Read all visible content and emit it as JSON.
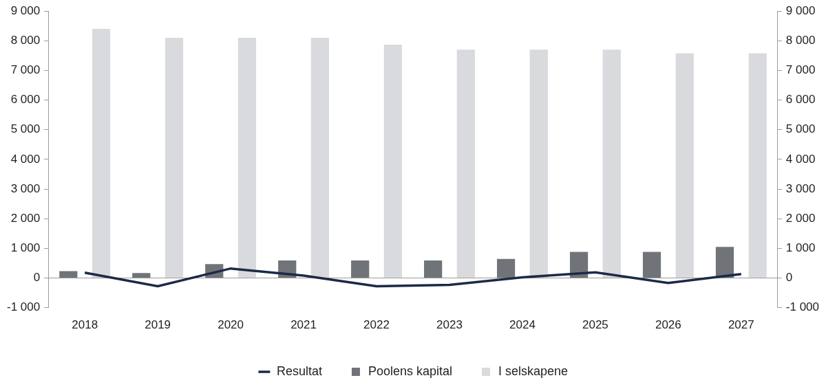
{
  "chart_data": {
    "type": "bar",
    "categories": [
      "2018",
      "2019",
      "2020",
      "2021",
      "2022",
      "2023",
      "2024",
      "2025",
      "2026",
      "2027"
    ],
    "series": [
      {
        "name": "Poolens kapital",
        "color": "#707479",
        "values": [
          230,
          170,
          470,
          590,
          590,
          590,
          640,
          880,
          880,
          1050
        ]
      },
      {
        "name": "I selskapene",
        "color": "#d9dadd",
        "values": [
          8400,
          8100,
          8100,
          8100,
          7870,
          7700,
          7700,
          7700,
          7580,
          7580
        ]
      },
      {
        "name": "Resultat",
        "color": "#1b2a47",
        "type": "line",
        "marker": "none",
        "line_style": "solid",
        "axis": "y2",
        "values": [
          180,
          -280,
          320,
          80,
          -280,
          -230,
          20,
          190,
          -170,
          130
        ]
      }
    ],
    "ylim": [
      -1000,
      9000
    ],
    "yticks": [
      {
        "value": -1000,
        "label": "-1 000"
      },
      0,
      {
        "value": 1000,
        "label": "1 000"
      },
      {
        "value": 2000,
        "label": "2 000"
      },
      {
        "value": 3000,
        "label": "3 000"
      },
      {
        "value": 4000,
        "label": "4 000"
      },
      {
        "value": 5000,
        "label": "5 000"
      },
      {
        "value": 6000,
        "label": "6 000"
      },
      {
        "value": 7000,
        "label": "7 000"
      },
      {
        "value": 8000,
        "label": "8 000"
      },
      {
        "value": 9000,
        "label": "9 000"
      }
    ],
    "y2lim": [
      -1000,
      9000
    ],
    "y2ticks": [
      {
        "value": -1000,
        "label": "-1 000"
      },
      0,
      {
        "value": 1000,
        "label": "1 000"
      },
      {
        "value": 2000,
        "label": "2 000"
      },
      {
        "value": 3000,
        "label": "3 000"
      },
      {
        "value": 4000,
        "label": "4 000"
      },
      {
        "value": 5000,
        "label": "5 000"
      },
      {
        "value": 6000,
        "label": "6 000"
      },
      {
        "value": 7000,
        "label": "7 000"
      },
      {
        "value": 8000,
        "label": "8 000"
      },
      {
        "value": 9000,
        "label": "9 000"
      }
    ],
    "grid": false,
    "legend": "bottom"
  }
}
